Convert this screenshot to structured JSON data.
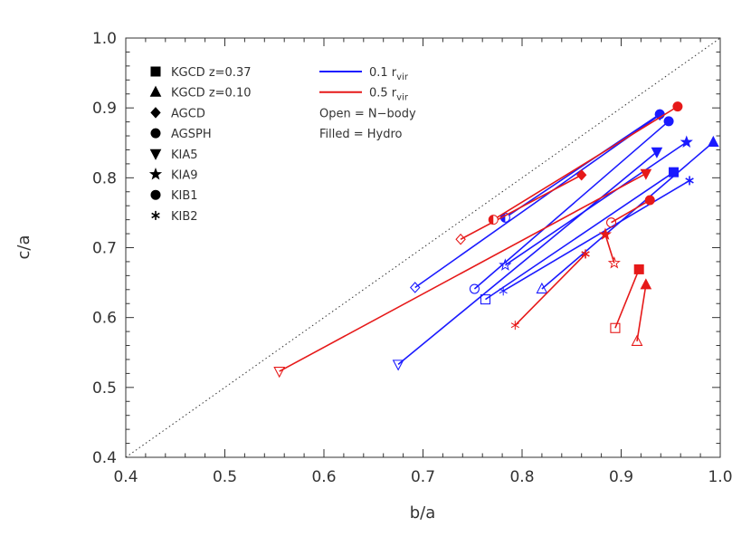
{
  "chart_data": {
    "type": "scatter",
    "title": "",
    "xlabel": "b/a",
    "ylabel": "c/a",
    "xlim": [
      0.4,
      1.0
    ],
    "ylim": [
      0.4,
      1.0
    ],
    "xticks": [
      "0.4",
      "0.5",
      "0.6",
      "0.7",
      "0.8",
      "0.9",
      "1.0"
    ],
    "yticks": [
      "0.4",
      "0.5",
      "0.6",
      "0.7",
      "0.8",
      "0.9",
      "1.0"
    ],
    "grid": false,
    "reference_line": {
      "style": "dotted",
      "from": [
        0.4,
        0.4
      ],
      "to": [
        1.0,
        1.0
      ]
    },
    "marker_legend": [
      {
        "symbol": "square",
        "label": "KGCD z=0.37"
      },
      {
        "symbol": "triangle",
        "label": "KGCD z=0.10"
      },
      {
        "symbol": "diamond",
        "label": "AGCD"
      },
      {
        "symbol": "halfcircle",
        "label": "AGSPH"
      },
      {
        "symbol": "triangle-down",
        "label": "KIA5"
      },
      {
        "symbol": "star",
        "label": "KIA9"
      },
      {
        "symbol": "circle",
        "label": "KIB1"
      },
      {
        "symbol": "asterisk",
        "label": "KIB2"
      }
    ],
    "line_legend": [
      {
        "color": "#1a1aff",
        "label": "0.1 r",
        "sub": "vir"
      },
      {
        "color": "#e61919",
        "label": "0.5 r",
        "sub": "vir"
      }
    ],
    "notes": [
      "Open = N−body",
      "Filled = Hydro"
    ],
    "series": [
      {
        "radius": "0.1 r_vir",
        "color": "#1a1aff",
        "segments": [
          {
            "symbol": "square",
            "open": [
              0.763,
              0.626
            ],
            "filled": [
              0.953,
              0.808
            ]
          },
          {
            "symbol": "triangle",
            "open": [
              0.82,
              0.641
            ],
            "filled": [
              0.993,
              0.851
            ]
          },
          {
            "symbol": "diamond",
            "open": [
              0.692,
              0.643
            ],
            "filled": [
              0.939,
              0.89
            ]
          },
          {
            "symbol": "halfcircle",
            "open": [
              0.783,
              0.743
            ],
            "filled": [
              0.939,
              0.891
            ]
          },
          {
            "symbol": "triangle-down",
            "open": [
              0.675,
              0.533
            ],
            "filled": [
              0.936,
              0.837
            ]
          },
          {
            "symbol": "star",
            "open": [
              0.783,
              0.675
            ],
            "filled": [
              0.966,
              0.851
            ]
          },
          {
            "symbol": "circle",
            "open": [
              0.752,
              0.641
            ],
            "filled": [
              0.948,
              0.881
            ]
          },
          {
            "symbol": "asterisk",
            "open": [
              0.781,
              0.638
            ],
            "filled": [
              0.969,
              0.796
            ]
          }
        ]
      },
      {
        "radius": "0.5 r_vir",
        "color": "#e61919",
        "segments": [
          {
            "symbol": "square",
            "open": [
              0.894,
              0.585
            ],
            "filled": [
              0.918,
              0.669
            ]
          },
          {
            "symbol": "triangle",
            "open": [
              0.916,
              0.566
            ],
            "filled": [
              0.925,
              0.647
            ]
          },
          {
            "symbol": "diamond",
            "open": [
              0.738,
              0.712
            ],
            "filled": [
              0.86,
              0.804
            ]
          },
          {
            "symbol": "halfcircle",
            "open": [
              0.771,
              0.74
            ],
            "filled": [
              0.957,
              0.902
            ]
          },
          {
            "symbol": "triangle-down",
            "open": [
              0.555,
              0.523
            ],
            "filled": [
              0.925,
              0.806
            ]
          },
          {
            "symbol": "star",
            "open": [
              0.893,
              0.678
            ],
            "filled": [
              0.884,
              0.719
            ]
          },
          {
            "symbol": "circle",
            "open": [
              0.89,
              0.736
            ],
            "filled": [
              0.929,
              0.768
            ]
          },
          {
            "symbol": "asterisk",
            "open": [
              0.793,
              0.589
            ],
            "filled": [
              0.864,
              0.691
            ]
          }
        ]
      }
    ]
  }
}
